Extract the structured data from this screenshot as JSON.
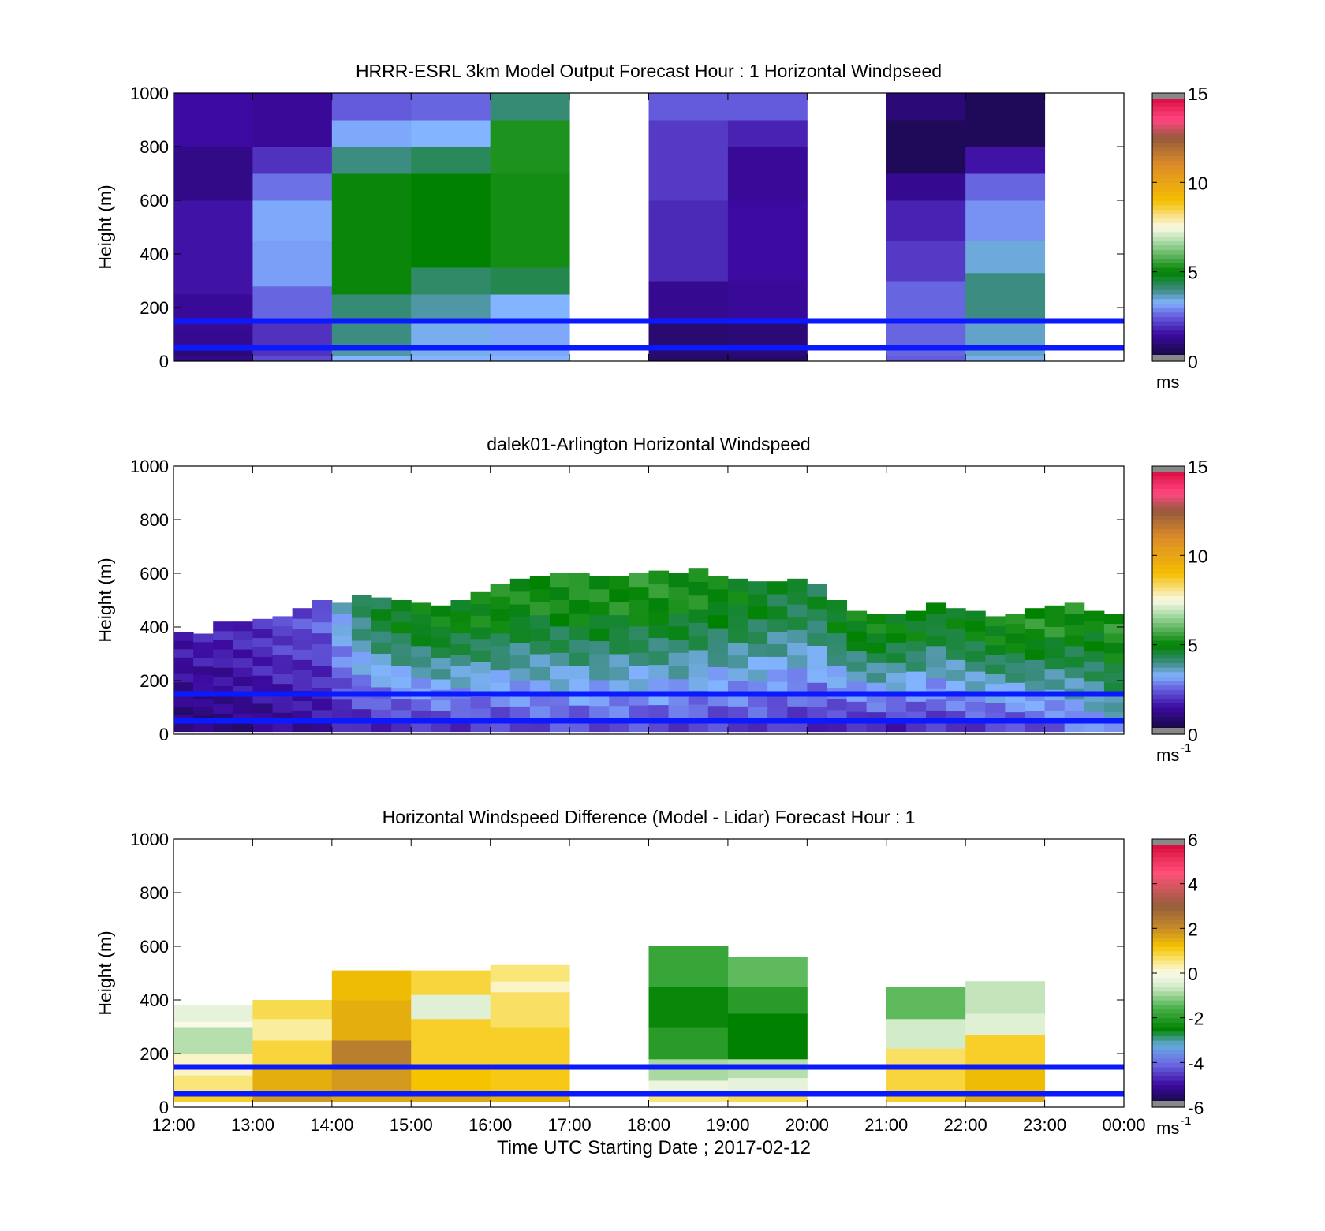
{
  "figure": {
    "xlabel": "Time UTC  Starting Date ; 2017-02-12",
    "time_ticks": [
      "12:00",
      "13:00",
      "14:00",
      "15:00",
      "16:00",
      "17:00",
      "18:00",
      "19:00",
      "20:00",
      "21:00",
      "22:00",
      "23:00",
      "00:00"
    ]
  },
  "chart_data": [
    {
      "type": "heatmap",
      "title": "HRRR-ESRL 3km Model Output   Forecast Hour : 1 Horizontal Windpseed",
      "ylabel": "Height (m)",
      "ylim": [
        0,
        1000
      ],
      "y_ticks": [
        "0",
        "200",
        "400",
        "600",
        "800",
        "1000"
      ],
      "x_range_hours": [
        12,
        24
      ],
      "colorbar": {
        "unit": "ms",
        "unit_sup": "",
        "ticks": [
          "0",
          "5",
          "10",
          "15"
        ],
        "range": [
          0,
          15
        ]
      },
      "reference_lines_m": [
        150,
        50
      ],
      "columns": [
        {
          "t": 12,
          "segments": [
            [
              0,
              20,
              1.2
            ],
            [
              20,
              60,
              1.0
            ],
            [
              60,
              120,
              1.3
            ],
            [
              120,
              250,
              1.4
            ],
            [
              250,
              600,
              1.6
            ],
            [
              600,
              800,
              1.2
            ],
            [
              800,
              1000,
              1.5
            ]
          ]
        },
        {
          "t": 13,
          "segments": [
            [
              0,
              20,
              2.3
            ],
            [
              20,
              150,
              2.0
            ],
            [
              150,
              280,
              2.6
            ],
            [
              280,
              450,
              3.1
            ],
            [
              450,
              600,
              3.2
            ],
            [
              600,
              700,
              2.7
            ],
            [
              700,
              800,
              2.0
            ],
            [
              800,
              1000,
              1.4
            ]
          ]
        },
        {
          "t": 14,
          "segments": [
            [
              0,
              20,
              3.3
            ],
            [
              20,
              60,
              3.8
            ],
            [
              60,
              150,
              4.0
            ],
            [
              150,
              250,
              4.1
            ],
            [
              250,
              700,
              5.1
            ],
            [
              700,
              800,
              4.0
            ],
            [
              800,
              900,
              3.2
            ],
            [
              900,
              1000,
              2.5
            ]
          ]
        },
        {
          "t": 15,
          "segments": [
            [
              0,
              20,
              3.3
            ],
            [
              20,
              150,
              3.4
            ],
            [
              150,
              250,
              3.8
            ],
            [
              250,
              350,
              4.2
            ],
            [
              350,
              700,
              5.0
            ],
            [
              700,
              800,
              4.3
            ],
            [
              800,
              900,
              3.3
            ],
            [
              900,
              1000,
              2.6
            ]
          ]
        },
        {
          "t": 16,
          "segments": [
            [
              0,
              20,
              3.3
            ],
            [
              20,
              150,
              3.2
            ],
            [
              150,
              250,
              3.3
            ],
            [
              250,
              350,
              4.4
            ],
            [
              350,
              700,
              5.2
            ],
            [
              700,
              900,
              5.3
            ],
            [
              900,
              1000,
              4.1
            ]
          ]
        },
        {
          "t": 18,
          "segments": [
            [
              0,
              20,
              0.8
            ],
            [
              20,
              150,
              0.9
            ],
            [
              150,
              300,
              1.3
            ],
            [
              300,
              600,
              1.9
            ],
            [
              600,
              900,
              2.1
            ],
            [
              900,
              1000,
              2.5
            ]
          ]
        },
        {
          "t": 19,
          "segments": [
            [
              0,
              20,
              0.8
            ],
            [
              20,
              150,
              1.0
            ],
            [
              150,
              300,
              1.4
            ],
            [
              300,
              600,
              1.5
            ],
            [
              600,
              800,
              1.4
            ],
            [
              800,
              900,
              1.8
            ],
            [
              900,
              1000,
              2.5
            ]
          ]
        },
        {
          "t": 21,
          "segments": [
            [
              0,
              20,
              2.5
            ],
            [
              20,
              150,
              2.6
            ],
            [
              150,
              300,
              2.6
            ],
            [
              300,
              450,
              2.1
            ],
            [
              450,
              600,
              1.8
            ],
            [
              600,
              700,
              1.3
            ],
            [
              700,
              900,
              0.6
            ],
            [
              900,
              1000,
              1.0
            ]
          ]
        },
        {
          "t": 22,
          "segments": [
            [
              0,
              20,
              3.4
            ],
            [
              20,
              150,
              3.6
            ],
            [
              150,
              330,
              4.0
            ],
            [
              330,
              450,
              3.5
            ],
            [
              450,
              600,
              3.0
            ],
            [
              600,
              700,
              2.6
            ],
            [
              700,
              800,
              1.6
            ],
            [
              800,
              1000,
              0.6
            ]
          ]
        }
      ]
    },
    {
      "type": "heatmap",
      "title": "dalek01-Arlington  Horizontal Windspeed",
      "ylabel": "Height (m)",
      "ylim": [
        0,
        1000
      ],
      "y_ticks": [
        "0",
        "200",
        "400",
        "600",
        "800",
        "1000"
      ],
      "x_range_hours": [
        12,
        24
      ],
      "colorbar": {
        "unit": "ms",
        "unit_sup": "-1",
        "ticks": [
          "0",
          "5",
          "10",
          "15"
        ],
        "range": [
          0,
          15
        ]
      },
      "reference_lines_m": [
        150,
        50
      ],
      "column_width_h": 0.25,
      "columns": [
        {
          "t": 12.0,
          "top": 380,
          "low": 1.0,
          "high": 1.6
        },
        {
          "t": 12.25,
          "top": 375,
          "low": 0.9,
          "high": 1.7
        },
        {
          "t": 12.5,
          "top": 420,
          "low": 1.0,
          "high": 1.8
        },
        {
          "t": 12.75,
          "top": 420,
          "low": 1.1,
          "high": 1.9
        },
        {
          "t": 13.0,
          "top": 430,
          "low": 1.2,
          "high": 2.0
        },
        {
          "t": 13.25,
          "top": 440,
          "low": 1.3,
          "high": 2.2
        },
        {
          "t": 13.5,
          "top": 470,
          "low": 1.3,
          "high": 2.3
        },
        {
          "t": 13.75,
          "top": 500,
          "low": 1.4,
          "high": 2.5
        },
        {
          "t": 14.0,
          "top": 490,
          "low": 1.6,
          "high": 3.4
        },
        {
          "t": 14.25,
          "top": 520,
          "low": 1.7,
          "high": 4.2
        },
        {
          "t": 14.5,
          "top": 510,
          "low": 1.8,
          "high": 4.6
        },
        {
          "t": 14.75,
          "top": 500,
          "low": 1.8,
          "high": 4.8
        },
        {
          "t": 15.0,
          "top": 490,
          "low": 1.8,
          "high": 4.9
        },
        {
          "t": 15.25,
          "top": 480,
          "low": 1.9,
          "high": 5.0
        },
        {
          "t": 15.5,
          "top": 500,
          "low": 1.9,
          "high": 5.0
        },
        {
          "t": 15.75,
          "top": 530,
          "low": 2.0,
          "high": 5.1
        },
        {
          "t": 16.0,
          "top": 560,
          "low": 2.0,
          "high": 5.2
        },
        {
          "t": 16.25,
          "top": 580,
          "low": 2.1,
          "high": 5.1
        },
        {
          "t": 16.5,
          "top": 590,
          "low": 2.1,
          "high": 5.2
        },
        {
          "t": 16.75,
          "top": 600,
          "low": 2.2,
          "high": 5.2
        },
        {
          "t": 17.0,
          "top": 600,
          "low": 2.2,
          "high": 5.3
        },
        {
          "t": 17.25,
          "top": 590,
          "low": 2.2,
          "high": 5.2
        },
        {
          "t": 17.5,
          "top": 590,
          "low": 2.2,
          "high": 5.2
        },
        {
          "t": 17.75,
          "top": 600,
          "low": 2.1,
          "high": 5.3
        },
        {
          "t": 18.0,
          "top": 610,
          "low": 2.1,
          "high": 5.3
        },
        {
          "t": 18.25,
          "top": 600,
          "low": 2.1,
          "high": 5.2
        },
        {
          "t": 18.5,
          "top": 620,
          "low": 2.0,
          "high": 5.2
        },
        {
          "t": 18.75,
          "top": 590,
          "low": 2.0,
          "high": 5.0
        },
        {
          "t": 19.0,
          "top": 580,
          "low": 2.0,
          "high": 4.9
        },
        {
          "t": 19.25,
          "top": 570,
          "low": 2.0,
          "high": 4.8
        },
        {
          "t": 19.5,
          "top": 570,
          "low": 1.9,
          "high": 4.6
        },
        {
          "t": 19.75,
          "top": 580,
          "low": 1.9,
          "high": 4.5
        },
        {
          "t": 20.0,
          "top": 560,
          "low": 1.8,
          "high": 4.5
        },
        {
          "t": 20.25,
          "top": 500,
          "low": 1.7,
          "high": 4.8
        },
        {
          "t": 20.5,
          "top": 460,
          "low": 1.6,
          "high": 5.0
        },
        {
          "t": 20.75,
          "top": 450,
          "low": 1.7,
          "high": 5.1
        },
        {
          "t": 21.0,
          "top": 450,
          "low": 1.7,
          "high": 5.0
        },
        {
          "t": 21.25,
          "top": 460,
          "low": 1.8,
          "high": 4.9
        },
        {
          "t": 21.5,
          "top": 490,
          "low": 1.8,
          "high": 4.7
        },
        {
          "t": 21.75,
          "top": 470,
          "low": 1.9,
          "high": 4.8
        },
        {
          "t": 22.0,
          "top": 460,
          "low": 2.0,
          "high": 5.0
        },
        {
          "t": 22.25,
          "top": 440,
          "low": 2.0,
          "high": 5.1
        },
        {
          "t": 22.5,
          "top": 450,
          "low": 2.1,
          "high": 5.2
        },
        {
          "t": 22.75,
          "top": 470,
          "low": 2.2,
          "high": 5.3
        },
        {
          "t": 23.0,
          "top": 480,
          "low": 2.3,
          "high": 5.3
        },
        {
          "t": 23.25,
          "top": 490,
          "low": 2.6,
          "high": 5.2
        },
        {
          "t": 23.5,
          "top": 460,
          "low": 2.9,
          "high": 5.0
        },
        {
          "t": 23.75,
          "top": 450,
          "low": 3.2,
          "high": 5.4
        }
      ]
    },
    {
      "type": "heatmap",
      "title": "Horizontal Windspeed Difference (Model - Lidar) Forecast Hour : 1",
      "ylabel": "Height (m)",
      "ylim": [
        0,
        1000
      ],
      "y_ticks": [
        "0",
        "200",
        "400",
        "600",
        "800",
        "1000"
      ],
      "x_range_hours": [
        12,
        24
      ],
      "colorbar": {
        "unit": "ms",
        "unit_sup": "-1",
        "ticks": [
          "-6",
          "-4",
          "-2",
          "0",
          "2",
          "4",
          "6"
        ],
        "range": [
          -6,
          6
        ]
      },
      "reference_lines_m": [
        150,
        50
      ],
      "columns": [
        {
          "t": 12,
          "segments": [
            [
              20,
              60,
              1.0
            ],
            [
              60,
              120,
              0.6
            ],
            [
              120,
              200,
              0.2
            ],
            [
              200,
              300,
              -0.8
            ],
            [
              300,
              320,
              0.0
            ],
            [
              320,
              380,
              -0.3
            ]
          ]
        },
        {
          "t": 13,
          "segments": [
            [
              20,
              60,
              1.8
            ],
            [
              60,
              150,
              1.5
            ],
            [
              150,
              250,
              0.9
            ],
            [
              250,
              330,
              0.4
            ],
            [
              330,
              400,
              0.8
            ]
          ]
        },
        {
          "t": 14,
          "segments": [
            [
              20,
              60,
              1.6
            ],
            [
              60,
              150,
              1.8
            ],
            [
              150,
              250,
              2.3
            ],
            [
              250,
              400,
              1.5
            ],
            [
              400,
              510,
              1.3
            ]
          ]
        },
        {
          "t": 15,
          "segments": [
            [
              20,
              60,
              1.6
            ],
            [
              60,
              150,
              1.2
            ],
            [
              150,
              330,
              1.0
            ],
            [
              330,
              420,
              -0.4
            ],
            [
              420,
              510,
              0.9
            ]
          ]
        },
        {
          "t": 16,
          "segments": [
            [
              20,
              60,
              1.4
            ],
            [
              60,
              150,
              1.1
            ],
            [
              150,
              300,
              1.0
            ],
            [
              300,
              430,
              0.7
            ],
            [
              430,
              470,
              0.2
            ],
            [
              470,
              530,
              0.6
            ]
          ]
        },
        {
          "t": 18,
          "segments": [
            [
              20,
              60,
              0.6
            ],
            [
              60,
              100,
              -0.2
            ],
            [
              100,
              180,
              -0.9
            ],
            [
              180,
              300,
              -2.0
            ],
            [
              300,
              450,
              -2.4
            ],
            [
              450,
              600,
              -1.8
            ]
          ]
        },
        {
          "t": 19,
          "segments": [
            [
              20,
              60,
              0.8
            ],
            [
              60,
              110,
              -0.3
            ],
            [
              110,
              180,
              -0.8
            ],
            [
              180,
              350,
              -2.5
            ],
            [
              350,
              450,
              -2.0
            ],
            [
              450,
              560,
              -1.4
            ]
          ]
        },
        {
          "t": 21,
          "segments": [
            [
              20,
              60,
              1.0
            ],
            [
              60,
              150,
              0.9
            ],
            [
              150,
              220,
              0.7
            ],
            [
              220,
              330,
              -0.6
            ],
            [
              330,
              450,
              -1.4
            ]
          ]
        },
        {
          "t": 22,
          "segments": [
            [
              20,
              60,
              1.6
            ],
            [
              60,
              150,
              1.3
            ],
            [
              150,
              270,
              1.0
            ],
            [
              270,
              350,
              -0.4
            ],
            [
              350,
              470,
              -0.7
            ]
          ]
        }
      ]
    }
  ]
}
